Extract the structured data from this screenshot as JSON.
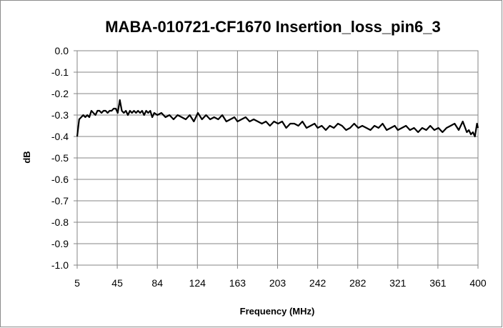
{
  "chart_data": {
    "type": "line",
    "title": "MABA-010721-CF1670 Insertion_loss_pin6_3",
    "xlabel": "Frequency (MHz)",
    "ylabel": "dB",
    "xlim": [
      5,
      400
    ],
    "ylim": [
      -1.0,
      0.0
    ],
    "x_tick_labels": [
      "5",
      "45",
      "84",
      "124",
      "163",
      "203",
      "242",
      "282",
      "321",
      "361",
      "400"
    ],
    "y_tick_labels": [
      "0.0",
      "-0.1",
      "-0.2",
      "-0.3",
      "-0.4",
      "-0.5",
      "-0.6",
      "-0.7",
      "-0.8",
      "-0.9",
      "-1.0"
    ],
    "grid": true,
    "legend": "none",
    "line_color": "#000000",
    "series": [
      {
        "x": [
          5,
          7,
          9,
          11,
          13,
          15,
          17,
          19,
          21,
          23,
          25,
          27,
          29,
          31,
          33,
          35,
          37,
          39,
          41,
          43,
          45,
          47,
          49,
          51,
          53,
          55,
          57,
          59,
          61,
          63,
          65,
          67,
          69,
          71,
          73,
          75,
          77,
          79,
          81,
          84,
          88,
          92,
          96,
          100,
          104,
          108,
          112,
          116,
          120,
          124,
          128,
          132,
          136,
          140,
          144,
          148,
          152,
          156,
          160,
          163,
          167,
          171,
          175,
          179,
          183,
          187,
          191,
          195,
          199,
          203,
          207,
          211,
          215,
          219,
          223,
          227,
          231,
          235,
          239,
          242,
          246,
          250,
          254,
          258,
          262,
          266,
          270,
          274,
          278,
          282,
          286,
          290,
          294,
          298,
          302,
          306,
          310,
          314,
          318,
          321,
          325,
          329,
          333,
          337,
          341,
          345,
          349,
          353,
          357,
          361,
          365,
          369,
          373,
          377,
          381,
          385,
          389,
          391,
          393,
          395,
          397,
          399,
          400
        ],
        "values": [
          -0.4,
          -0.32,
          -0.31,
          -0.3,
          -0.31,
          -0.3,
          -0.31,
          -0.28,
          -0.29,
          -0.3,
          -0.28,
          -0.28,
          -0.29,
          -0.28,
          -0.28,
          -0.29,
          -0.28,
          -0.28,
          -0.27,
          -0.27,
          -0.29,
          -0.23,
          -0.28,
          -0.29,
          -0.28,
          -0.3,
          -0.28,
          -0.29,
          -0.28,
          -0.29,
          -0.28,
          -0.29,
          -0.28,
          -0.3,
          -0.28,
          -0.29,
          -0.28,
          -0.31,
          -0.29,
          -0.3,
          -0.29,
          -0.31,
          -0.3,
          -0.32,
          -0.3,
          -0.31,
          -0.32,
          -0.3,
          -0.33,
          -0.29,
          -0.32,
          -0.3,
          -0.32,
          -0.31,
          -0.32,
          -0.3,
          -0.33,
          -0.32,
          -0.31,
          -0.33,
          -0.32,
          -0.31,
          -0.33,
          -0.32,
          -0.33,
          -0.34,
          -0.33,
          -0.35,
          -0.33,
          -0.34,
          -0.33,
          -0.36,
          -0.34,
          -0.34,
          -0.35,
          -0.33,
          -0.36,
          -0.35,
          -0.34,
          -0.36,
          -0.35,
          -0.37,
          -0.35,
          -0.36,
          -0.34,
          -0.35,
          -0.37,
          -0.36,
          -0.34,
          -0.36,
          -0.35,
          -0.36,
          -0.37,
          -0.35,
          -0.36,
          -0.34,
          -0.37,
          -0.36,
          -0.35,
          -0.37,
          -0.36,
          -0.35,
          -0.37,
          -0.36,
          -0.38,
          -0.36,
          -0.37,
          -0.35,
          -0.37,
          -0.36,
          -0.38,
          -0.36,
          -0.35,
          -0.34,
          -0.37,
          -0.33,
          -0.38,
          -0.37,
          -0.39,
          -0.38,
          -0.4,
          -0.34,
          -0.36
        ]
      }
    ]
  }
}
